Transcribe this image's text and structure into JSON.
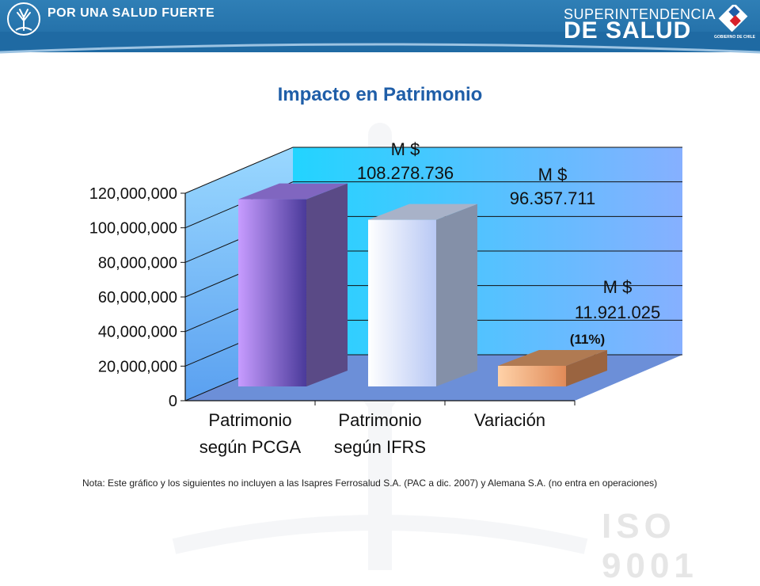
{
  "header": {
    "brand_left": "POR UNA SALUD FUERTE",
    "brand_right_top": "SUPERINTENDENCIA",
    "brand_right_bottom": "DE SALUD",
    "gov_label": "GOBIERNO DE CHILE",
    "colors": {
      "header_bg": "#2f7fb6"
    }
  },
  "title": "Impacto en Patrimonio",
  "note": "Nota: Este gráfico y los siguientes no incluyen a las Isapres Ferrosalud S.A. (PAC a dic. 2007) y Alemana S.A. (no entra en operaciones)",
  "watermark": "ISO 9001",
  "chart_data": {
    "type": "bar",
    "title": "Impacto en Patrimonio",
    "categories": [
      "Patrimonio según PCGA",
      "Patrimonio según IFRS",
      "Variación"
    ],
    "category_lines": [
      [
        "Patrimonio",
        "según PCGA"
      ],
      [
        "Patrimonio",
        "según IFRS"
      ],
      [
        "Variación"
      ]
    ],
    "values": [
      108278736,
      96357711,
      11921025
    ],
    "ylim": [
      0,
      120000000
    ],
    "yticks": [
      0,
      20000000,
      40000000,
      60000000,
      80000000,
      100000000,
      120000000
    ],
    "ytick_labels": [
      "0",
      "20,000,000",
      "40,000,000",
      "60,000,000",
      "80,000,000",
      "100,000,000",
      "120,000,000"
    ],
    "grid": true,
    "annotations": [
      {
        "unit": "M $",
        "value_text": "108.278.736"
      },
      {
        "unit": "M $",
        "value_text": "96.357.711"
      },
      {
        "unit": "M $",
        "value_text": "11.921.025",
        "extra": "(11%)"
      }
    ],
    "bar_colors": [
      {
        "front_light": "#c79cff",
        "front_dark": "#4a3a9a",
        "side": "#5a4a86",
        "top": "#8066c0"
      },
      {
        "front_light": "#ffffff",
        "front_dark": "#b8c8f4",
        "side": "#8490a8",
        "top": "#a8b2c8"
      },
      {
        "front_light": "#ffd2a8",
        "front_dark": "#e08a58",
        "side": "#9a6440",
        "top": "#b07a52"
      }
    ],
    "colors": {
      "wall": "#7fb2ff",
      "wall_light": "#2fd2ff",
      "floor": "#6c8fd8"
    }
  }
}
